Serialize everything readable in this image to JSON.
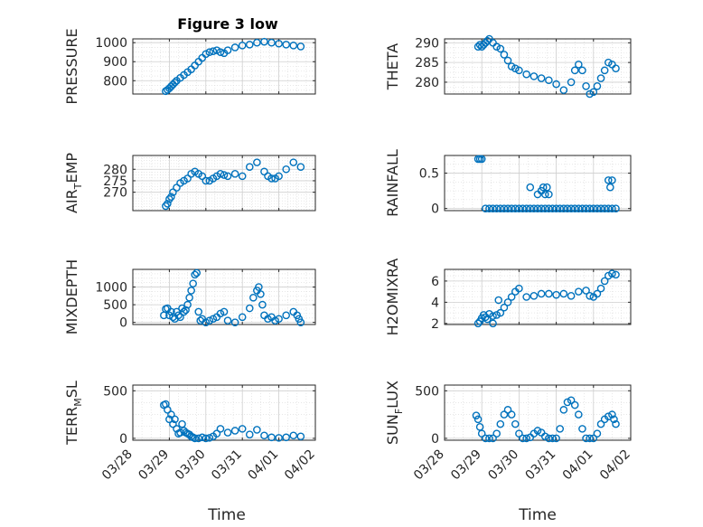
{
  "title": "Figure 3 low",
  "marker_color": "#0072BD",
  "x_ticks": [
    "03/28",
    "03/29",
    "03/30",
    "03/31",
    "04/01",
    "04/02"
  ],
  "x_label": "Time",
  "chart_data": [
    {
      "type": "scatter",
      "ylabel_parts": [
        "PRESSURE"
      ],
      "ylim": [
        730,
        1020
      ],
      "yticks": [
        800,
        900,
        1000
      ],
      "x": [
        0.9,
        0.95,
        1.0,
        1.05,
        1.1,
        1.15,
        1.2,
        1.3,
        1.4,
        1.5,
        1.6,
        1.7,
        1.8,
        1.9,
        2.0,
        2.1,
        2.2,
        2.3,
        2.4,
        2.5,
        2.6,
        2.8,
        3.0,
        3.2,
        3.4,
        3.6,
        3.8,
        4.0,
        4.2,
        4.4,
        4.6
      ],
      "y": [
        745,
        752,
        760,
        770,
        780,
        790,
        800,
        815,
        830,
        845,
        860,
        880,
        900,
        920,
        940,
        950,
        955,
        960,
        950,
        945,
        960,
        975,
        985,
        990,
        1000,
        1005,
        1000,
        995,
        990,
        985,
        980
      ]
    },
    {
      "type": "scatter",
      "ylabel_parts": [
        "THETA"
      ],
      "ylim": [
        277,
        291
      ],
      "yticks": [
        280,
        285,
        290
      ],
      "x": [
        0.9,
        0.95,
        1.0,
        1.05,
        1.1,
        1.15,
        1.2,
        1.3,
        1.4,
        1.5,
        1.6,
        1.7,
        1.8,
        1.9,
        2.0,
        2.2,
        2.4,
        2.6,
        2.8,
        3.0,
        3.2,
        3.4,
        3.5,
        3.6,
        3.7,
        3.8,
        3.9,
        4.0,
        4.1,
        4.2,
        4.3,
        4.4,
        4.5,
        4.6
      ],
      "y": [
        289,
        289.5,
        289,
        289.5,
        290,
        290.5,
        291,
        290,
        289,
        288.5,
        287,
        285.5,
        284,
        283.5,
        283,
        282,
        281.5,
        281,
        280.5,
        279.5,
        278,
        280,
        283,
        284.5,
        283,
        279,
        277,
        277.5,
        279,
        281,
        283,
        285,
        284.5,
        283.5
      ]
    },
    {
      "type": "scatter",
      "ylabel_parts": [
        "AIR",
        "T",
        "EMP"
      ],
      "ylim": [
        262,
        286
      ],
      "yticks": [
        270,
        275,
        280
      ],
      "x": [
        0.9,
        0.95,
        1.0,
        1.05,
        1.1,
        1.2,
        1.3,
        1.4,
        1.5,
        1.6,
        1.7,
        1.8,
        1.9,
        2.0,
        2.1,
        2.2,
        2.3,
        2.4,
        2.5,
        2.6,
        2.8,
        3.0,
        3.2,
        3.4,
        3.6,
        3.7,
        3.8,
        3.9,
        4.0,
        4.2,
        4.4,
        4.6
      ],
      "y": [
        264,
        265,
        267,
        268,
        270,
        272,
        274,
        275,
        276,
        278,
        279,
        278,
        277,
        275,
        275,
        276,
        277,
        278,
        277.5,
        277,
        278,
        277,
        281,
        283,
        279,
        277,
        276,
        276,
        277,
        280,
        283,
        281
      ]
    },
    {
      "type": "scatter",
      "ylabel_parts": [
        "RAINFALL"
      ],
      "ylim": [
        -0.03,
        0.75
      ],
      "yticks": [
        0,
        0.5
      ],
      "x": [
        0.9,
        0.95,
        1.0,
        1.1,
        1.2,
        1.3,
        1.4,
        1.5,
        1.6,
        1.7,
        1.8,
        1.9,
        2.0,
        2.1,
        2.2,
        2.3,
        2.4,
        2.5,
        2.6,
        2.7,
        2.8,
        2.9,
        3.0,
        3.1,
        3.2,
        3.3,
        3.4,
        3.5,
        3.6,
        3.7,
        3.8,
        3.9,
        4.0,
        4.1,
        4.2,
        4.3,
        4.4,
        4.5,
        4.6,
        2.3,
        2.5,
        2.6,
        2.65,
        2.7,
        2.75,
        2.8,
        4.4,
        4.45,
        4.5
      ],
      "y": [
        0.7,
        0.7,
        0.7,
        0,
        0,
        0,
        0,
        0,
        0,
        0,
        0,
        0,
        0,
        0,
        0,
        0,
        0,
        0,
        0,
        0,
        0,
        0,
        0,
        0,
        0,
        0,
        0,
        0,
        0,
        0,
        0,
        0,
        0,
        0,
        0,
        0,
        0,
        0,
        0,
        0.3,
        0.2,
        0.25,
        0.3,
        0.2,
        0.3,
        0.2,
        0.4,
        0.3,
        0.4
      ]
    },
    {
      "type": "scatter",
      "ylabel_parts": [
        "MIXDEPTH"
      ],
      "ylim": [
        -60,
        1500
      ],
      "yticks": [
        0,
        500,
        1000
      ],
      "x": [
        0.85,
        0.9,
        0.95,
        1.0,
        1.05,
        1.1,
        1.15,
        1.2,
        1.25,
        1.3,
        1.35,
        1.4,
        1.45,
        1.5,
        1.55,
        1.6,
        1.65,
        1.7,
        1.75,
        1.8,
        1.85,
        1.9,
        2.0,
        2.1,
        2.2,
        2.3,
        2.4,
        2.5,
        2.6,
        2.8,
        3.0,
        3.2,
        3.3,
        3.4,
        3.45,
        3.5,
        3.55,
        3.6,
        3.7,
        3.8,
        3.9,
        4.0,
        4.2,
        4.4,
        4.5,
        4.55,
        4.6
      ],
      "y": [
        200,
        380,
        400,
        200,
        300,
        150,
        100,
        300,
        200,
        150,
        400,
        300,
        350,
        500,
        700,
        900,
        1100,
        1350,
        1400,
        300,
        50,
        100,
        0,
        50,
        100,
        150,
        250,
        300,
        50,
        0,
        150,
        400,
        700,
        900,
        1000,
        800,
        500,
        200,
        100,
        150,
        50,
        100,
        200,
        300,
        200,
        100,
        0
      ]
    },
    {
      "type": "scatter",
      "ylabel_parts": [
        "H2OMIXRA"
      ],
      "ylim": [
        1.9,
        7.1
      ],
      "yticks": [
        2,
        4,
        6
      ],
      "x": [
        0.9,
        0.95,
        1.0,
        1.05,
        1.1,
        1.15,
        1.2,
        1.3,
        1.4,
        1.5,
        1.6,
        1.7,
        1.8,
        1.9,
        2.0,
        2.2,
        2.4,
        2.6,
        2.8,
        3.0,
        3.2,
        3.4,
        3.6,
        3.8,
        3.9,
        4.0,
        4.1,
        4.2,
        4.3,
        4.4,
        4.5,
        4.6,
        1.3,
        1.45
      ],
      "y": [
        2,
        2.2,
        2.5,
        2.8,
        2.6,
        2.4,
        2.9,
        2.7,
        2.8,
        3.0,
        3.5,
        4.0,
        4.5,
        5.0,
        5.3,
        4.5,
        4.6,
        4.8,
        4.8,
        4.7,
        4.8,
        4.6,
        5.0,
        5.1,
        4.6,
        4.5,
        4.8,
        5.3,
        6.0,
        6.5,
        6.7,
        6.6,
        2.0,
        4.2
      ]
    },
    {
      "type": "scatter",
      "ylabel_parts": [
        "TERR",
        "M",
        "SL"
      ],
      "ylim": [
        -20,
        560
      ],
      "yticks": [
        0,
        500
      ],
      "x": [
        0.85,
        0.9,
        0.95,
        1.0,
        1.05,
        1.1,
        1.15,
        1.2,
        1.25,
        1.3,
        1.35,
        1.4,
        1.45,
        1.5,
        1.55,
        1.6,
        1.65,
        1.7,
        1.8,
        1.9,
        2.0,
        2.1,
        2.2,
        2.3,
        2.4,
        2.6,
        2.8,
        3.0,
        3.2,
        3.4,
        3.6,
        3.8,
        4.0,
        4.2,
        4.4,
        4.6
      ],
      "y": [
        350,
        360,
        300,
        200,
        250,
        150,
        200,
        100,
        50,
        60,
        150,
        80,
        60,
        50,
        40,
        20,
        10,
        0,
        0,
        10,
        0,
        5,
        20,
        50,
        100,
        60,
        80,
        100,
        40,
        90,
        30,
        10,
        5,
        10,
        30,
        20
      ]
    },
    {
      "type": "scatter",
      "ylabel_parts": [
        "SUN",
        "F",
        "LUX"
      ],
      "ylim": [
        -20,
        560
      ],
      "yticks": [
        0,
        500
      ],
      "x": [
        0.85,
        0.9,
        0.95,
        1.0,
        1.1,
        1.2,
        1.3,
        1.4,
        1.5,
        1.6,
        1.7,
        1.8,
        1.9,
        2.0,
        2.1,
        2.2,
        2.3,
        2.4,
        2.5,
        2.6,
        2.7,
        2.8,
        2.9,
        3.0,
        3.1,
        3.2,
        3.3,
        3.4,
        3.5,
        3.6,
        3.7,
        3.8,
        3.9,
        4.0,
        4.1,
        4.2,
        4.3,
        4.4,
        4.5,
        4.55,
        4.6
      ],
      "y": [
        240,
        200,
        120,
        50,
        0,
        0,
        0,
        50,
        150,
        250,
        300,
        250,
        150,
        50,
        0,
        0,
        10,
        50,
        80,
        60,
        20,
        0,
        0,
        0,
        100,
        300,
        380,
        400,
        350,
        250,
        100,
        0,
        0,
        0,
        50,
        150,
        200,
        230,
        250,
        200,
        150
      ]
    }
  ]
}
